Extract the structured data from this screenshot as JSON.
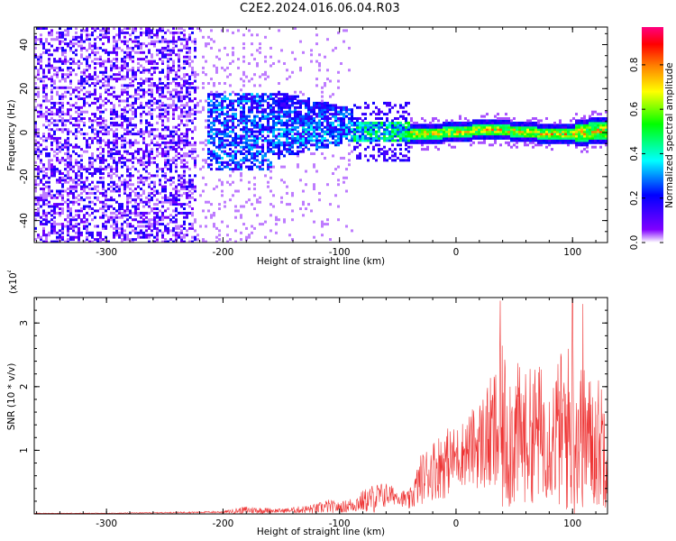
{
  "figure": {
    "title": "C2E2.2024.016.06.04.R03"
  },
  "chart_data": [
    {
      "type": "heatmap",
      "title": "C2E2.2024.016.06.04.R03",
      "xlabel": "Height of straight line (km)",
      "ylabel": "Frequency (Hz)",
      "xlim": [
        -362,
        130
      ],
      "ylim": [
        -50,
        48
      ],
      "xticks": [
        -300,
        -200,
        -100,
        0,
        100
      ],
      "yticks": [
        -40,
        -20,
        0,
        20,
        40
      ],
      "colorbar": {
        "label": "Normalized spectral amplitude",
        "range": [
          0,
          0.97
        ],
        "ticks": [
          0.0,
          0.2,
          0.4,
          0.6,
          0.8
        ],
        "colormap": "rainbow",
        "colors": [
          "#ffffff",
          "#8000ff",
          "#0000ff",
          "#00ffff",
          "#00ff00",
          "#ffff00",
          "#ff8000",
          "#ff0000",
          "#ff0080"
        ]
      },
      "regions": [
        {
          "x": [
            -362,
            -225
          ],
          "freq": [
            -50,
            48
          ],
          "description_level": 0.08
        },
        {
          "x": [
            -220,
            -90
          ],
          "freq": [
            -15,
            20
          ],
          "description_level": 0.2
        },
        {
          "x": [
            -90,
            130
          ],
          "freq": [
            -4,
            4
          ],
          "description_level": 0.5
        }
      ],
      "signal_center_freq": 0
    },
    {
      "type": "line",
      "xlabel": "Height of straight line (km)",
      "ylabel": "SNR (10 * v/v)",
      "y_multiplier_label": "(x10",
      "y_multiplier_exp": "4",
      "xlim": [
        -362,
        130
      ],
      "ylim": [
        0,
        3.4
      ],
      "xticks": [
        -300,
        -200,
        -100,
        0,
        100
      ],
      "yticks": [
        1,
        2,
        3
      ],
      "color": "#ee3333",
      "envelope": {
        "x": [
          -362,
          -300,
          -250,
          -200,
          -180,
          -150,
          -120,
          -110,
          -100,
          -90,
          -80,
          -70,
          -60,
          -50,
          -40,
          -30,
          -20,
          -10,
          0,
          10,
          20,
          30,
          40,
          50,
          60,
          70,
          80,
          90,
          100,
          110,
          120,
          130
        ],
        "mean": [
          0.01,
          0.01,
          0.02,
          0.03,
          0.06,
          0.05,
          0.08,
          0.12,
          0.1,
          0.14,
          0.2,
          0.25,
          0.3,
          0.28,
          0.2,
          0.55,
          0.7,
          0.8,
          0.9,
          1.0,
          1.1,
          1.2,
          1.3,
          1.25,
          1.2,
          1.3,
          1.2,
          1.3,
          1.35,
          1.2,
          1.1,
          1.2
        ],
        "amplitude": [
          0.005,
          0.005,
          0.01,
          0.02,
          0.08,
          0.04,
          0.1,
          0.14,
          0.1,
          0.15,
          0.22,
          0.3,
          0.25,
          0.15,
          0.2,
          0.5,
          0.6,
          0.7,
          0.6,
          0.7,
          0.9,
          1.2,
          1.7,
          1.5,
          1.3,
          1.4,
          1.2,
          1.6,
          1.8,
          1.4,
          1.3,
          1.4
        ],
        "peaks": [
          {
            "x": 38,
            "y": 3.35
          },
          {
            "x": 100,
            "y": 3.4
          },
          {
            "x": 109,
            "y": 3.3
          }
        ]
      }
    }
  ]
}
